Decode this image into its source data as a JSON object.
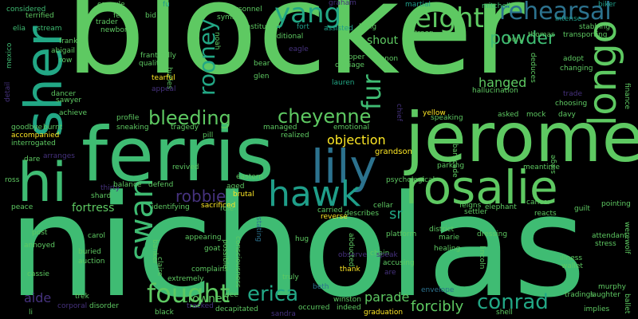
{
  "palette": {
    "background": "#000000",
    "green": "#5ec962",
    "teal_green": "#3fbc73",
    "teal": "#22a785",
    "blue_teal": "#1f9e89",
    "blue": "#2c728e",
    "purple": "#46327e",
    "dark_purple": "#440154",
    "yellow": "#fde725"
  },
  "words": [
    "blocker",
    "nicholas",
    "jerome",
    "ferris",
    "rosalie",
    "hi",
    "sher",
    "lily",
    "hawk",
    "longo",
    "yang",
    "eight",
    "rehearsal",
    "powder",
    "swan",
    "fought",
    "erica",
    "conrad",
    "cheyenne",
    "rooney",
    "fur",
    "bleeding",
    "robbie",
    "hanged",
    "objection",
    "parade",
    "forcibly",
    "aide",
    "sr",
    "shout",
    "fortress",
    "crowned",
    "grandson",
    "considered",
    "capsule",
    "fu",
    "graham",
    "martial",
    "mitchell",
    "biker",
    "terrified",
    "feud",
    "bid",
    "symbol",
    "personnel",
    "noah",
    "institution",
    "fort",
    "assisted",
    "kung",
    "trader",
    "newborn",
    "traditional",
    "eagle",
    "stabbing",
    "transporting",
    "elia",
    "stream",
    "abigail",
    "row",
    "frantically",
    "quality",
    "buries",
    "trapper",
    "cannon",
    "carriage",
    "troop",
    "bury",
    "thomas",
    "adopt",
    "mexico",
    "dancer",
    "sawyer",
    "tearful",
    "appeal",
    "lauren",
    "glen",
    "bear",
    "hallucination",
    "changing",
    "deduces",
    "intense",
    "achieve",
    "burnt",
    "goodbye",
    "accompanied",
    "interrogated",
    "profile",
    "sneaking",
    "tragedy",
    "pill",
    "emotional",
    "managed",
    "realized",
    "yellow",
    "speaking",
    "asked",
    "mock",
    "davy",
    "choosing",
    "finance",
    "trade",
    "arranges",
    "dare",
    "ross",
    "thirty",
    "balance",
    "defend",
    "shard",
    "identifying",
    "sacrificed",
    "brutal",
    "aged",
    "revived",
    "eastern",
    "psychological",
    "parking",
    "meantime",
    "siege",
    "peace",
    "cellar",
    "feigns",
    "elephant",
    "cancer",
    "reacts",
    "pointing",
    "role",
    "carried",
    "describes",
    "reverse",
    "settler",
    "guilt",
    "post",
    "annoyed",
    "carol",
    "buried",
    "auction",
    "goat",
    "appearing",
    "platform",
    "district",
    "marie",
    "dressing",
    "attendant",
    "stress",
    "werewolf",
    "cassie",
    "extremely",
    "hug",
    "accusing",
    "healing",
    "illness",
    "wallet",
    "trek",
    "corporal",
    "disorder",
    "complains",
    "consciousness",
    "truly",
    "chain",
    "thank",
    "lincoln",
    "murphy",
    "tracked",
    "dee",
    "envelope",
    "winston",
    "indeed",
    "graduation",
    "occurred",
    "decapitated",
    "shell",
    "implies",
    "ballet",
    "laughter",
    "tradings",
    "li",
    "frankie",
    "black",
    "possible",
    "claire",
    "banker",
    "stating",
    "observe",
    "abducted",
    "beth",
    "speak",
    "detail",
    "chief",
    "barricade",
    "sandra",
    "are"
  ]
}
